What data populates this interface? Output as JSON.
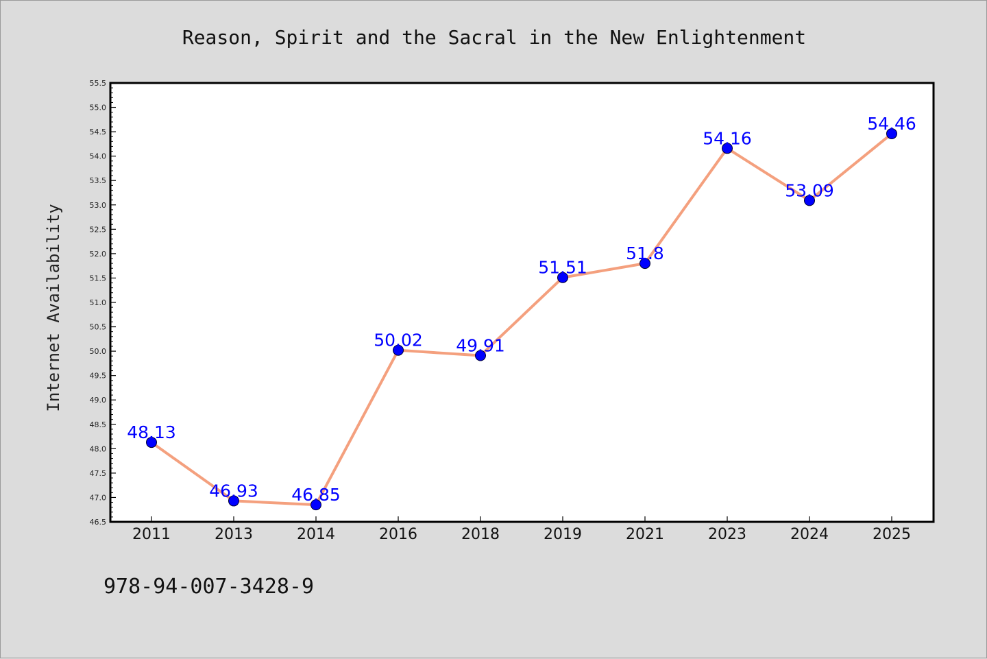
{
  "chart_data": {
    "type": "line",
    "title": "Reason, Spirit and the Sacral in the New Enlightenment",
    "ylabel": "Internet Availability",
    "xlabel": "",
    "categories": [
      "2011",
      "2013",
      "2014",
      "2016",
      "2018",
      "2019",
      "2021",
      "2023",
      "2024",
      "2025"
    ],
    "series": [
      {
        "values": [
          48.13,
          46.93,
          46.85,
          50.02,
          49.91,
          51.51,
          51.8,
          54.16,
          53.09,
          54.46
        ],
        "labels": [
          "48.13",
          "46.93",
          "46.85",
          "50.02",
          "49.91",
          "51.51",
          "51.8",
          "54.16",
          "53.09",
          "54.46"
        ]
      }
    ],
    "ylim": [
      46.5,
      55.5
    ],
    "yticks": [
      "46.5",
      "47.0",
      "47.5",
      "48.0",
      "48.5",
      "49.0",
      "49.5",
      "50.0",
      "50.5",
      "51.0",
      "51.5",
      "52.0",
      "52.5",
      "53.0",
      "53.5",
      "54.0",
      "54.5",
      "55.0",
      "55.5"
    ],
    "grid": false,
    "line_color": "#f4a07e",
    "marker_color": "#0000ff",
    "label_color": "#0000ff"
  },
  "footer": {
    "isbn": "978-94-007-3428-9"
  }
}
